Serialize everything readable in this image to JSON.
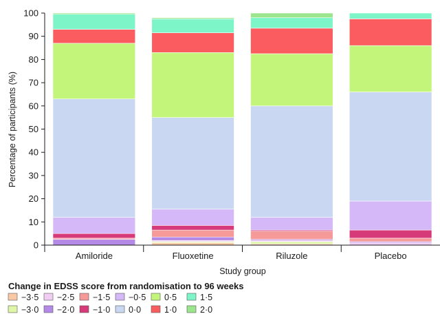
{
  "chart_data": {
    "type": "bar",
    "stacked": true,
    "categories": [
      "Amiloride",
      "Fluoxetine",
      "Riluzole",
      "Placebo"
    ],
    "xlabel": "Study group",
    "ylabel": "Percentage of participants (%)",
    "ylim": [
      0,
      100
    ],
    "yticks": [
      0,
      10,
      20,
      30,
      40,
      50,
      60,
      70,
      80,
      90,
      100
    ],
    "grid": false,
    "legend_title": "Change in EDSS score from randomisation to 96 weeks",
    "legend_position": "bottom",
    "series": [
      {
        "name": "−3·5",
        "color": "#f9c8a5",
        "values": [
          0,
          1.0,
          0.5,
          0
        ]
      },
      {
        "name": "−3·0",
        "color": "#dff5a8",
        "values": [
          0,
          0.5,
          1.0,
          0
        ]
      },
      {
        "name": "−2·5",
        "color": "#f1cdf3",
        "values": [
          0,
          0.5,
          0.5,
          1.0
        ]
      },
      {
        "name": "−2·0",
        "color": "#b58ae6",
        "values": [
          2.5,
          1.5,
          0.5,
          0.5
        ]
      },
      {
        "name": "−1·5",
        "color": "#f59a99",
        "values": [
          0.5,
          3.0,
          3.5,
          1.5
        ]
      },
      {
        "name": "−1·0",
        "color": "#d63a78",
        "values": [
          2.0,
          2.0,
          0.5,
          3.5
        ]
      },
      {
        "name": "−0·5",
        "color": "#d4b8f7",
        "values": [
          7.0,
          7.0,
          5.5,
          12.5
        ]
      },
      {
        "name": "0·0",
        "color": "#c9d7f2",
        "values": [
          51.0,
          39.5,
          48.0,
          47.0
        ]
      },
      {
        "name": "0·5",
        "color": "#c2f57a",
        "values": [
          24.0,
          28.0,
          22.5,
          20.0
        ]
      },
      {
        "name": "1·0",
        "color": "#fa5c5f",
        "values": [
          6.0,
          8.5,
          11.0,
          11.5
        ]
      },
      {
        "name": "1·5",
        "color": "#7ef5c8",
        "values": [
          6.5,
          6.0,
          4.5,
          2.5
        ]
      },
      {
        "name": "2·0",
        "color": "#9be58c",
        "values": [
          0.5,
          0.5,
          2.0,
          0
        ]
      }
    ]
  }
}
